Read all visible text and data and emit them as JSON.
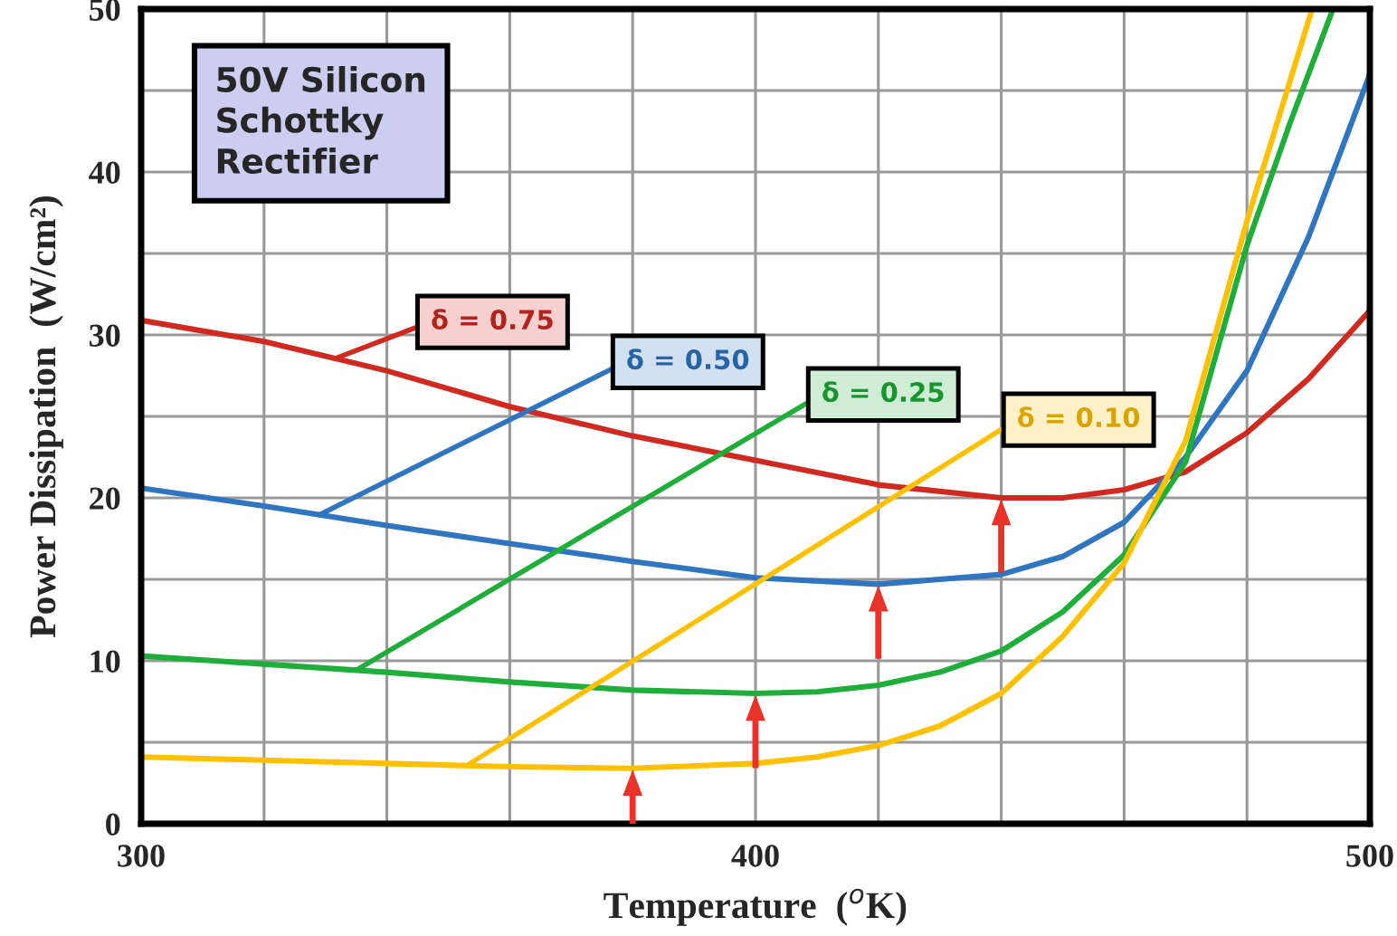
{
  "chart_data": {
    "type": "line",
    "xlabel": "Temperature  ($^{o}$K)",
    "ylabel": "Power Dissipation  (W/cm²)",
    "annotations": [
      "50V Silicon\nSchottky\nRectifier"
    ],
    "xlim": [
      300,
      500
    ],
    "ylim": [
      0,
      50
    ],
    "xticks": [
      300,
      {
        "value": 320,
        "label": null
      },
      {
        "value": 340,
        "label": null
      },
      {
        "value": 360,
        "label": null
      },
      {
        "value": 380,
        "label": null
      },
      400,
      {
        "value": 420,
        "label": null
      },
      {
        "value": 440,
        "label": null
      },
      {
        "value": 460,
        "label": null
      },
      {
        "value": 480,
        "label": null
      },
      500
    ],
    "yticks": [
      0,
      {
        "value": 5,
        "label": null
      },
      10,
      {
        "value": 15,
        "label": null
      },
      20,
      {
        "value": 25,
        "label": null
      },
      30,
      {
        "value": 35,
        "label": null
      },
      40,
      {
        "value": 45,
        "label": null
      },
      50
    ],
    "grid": true,
    "legend": false,
    "marker": "none",
    "line_style": "solid",
    "series": [
      {
        "name": "δ = 0.75",
        "color": "#d02a20",
        "x": [
          300,
          320,
          340,
          360,
          380,
          400,
          420,
          440,
          450,
          460,
          470,
          480,
          490,
          500
        ],
        "values": [
          30.9,
          29.6,
          27.8,
          25.6,
          23.8,
          22.3,
          20.8,
          20.0,
          20.0,
          20.5,
          21.6,
          24.0,
          27.3,
          31.5
        ]
      },
      {
        "name": "δ = 0.50",
        "color": "#2f75c0",
        "x": [
          300,
          320,
          340,
          360,
          380,
          400,
          420,
          440,
          450,
          460,
          470,
          480,
          490,
          500
        ],
        "values": [
          20.6,
          19.5,
          18.3,
          17.2,
          16.1,
          15.1,
          14.7,
          15.3,
          16.4,
          18.5,
          22.5,
          27.8,
          36,
          46
        ]
      },
      {
        "name": "δ = 0.25",
        "color": "#1fae3a",
        "x": [
          300,
          320,
          340,
          360,
          380,
          400,
          410,
          420,
          430,
          440,
          450,
          460,
          470,
          480,
          487,
          494
        ],
        "values": [
          10.3,
          9.8,
          9.3,
          8.7,
          8.2,
          8.0,
          8.1,
          8.5,
          9.3,
          10.6,
          13.0,
          16.5,
          22.2,
          35.5,
          43,
          50
        ]
      },
      {
        "name": "δ = 0.10",
        "color": "#ffc000",
        "x": [
          300,
          320,
          340,
          360,
          380,
          400,
          410,
          420,
          430,
          440,
          450,
          460,
          470,
          480,
          490.6
        ],
        "values": [
          4.1,
          3.9,
          3.7,
          3.5,
          3.4,
          3.7,
          4.1,
          4.8,
          6.0,
          8.0,
          11.5,
          16.0,
          23.5,
          37,
          50
        ]
      }
    ]
  }
}
